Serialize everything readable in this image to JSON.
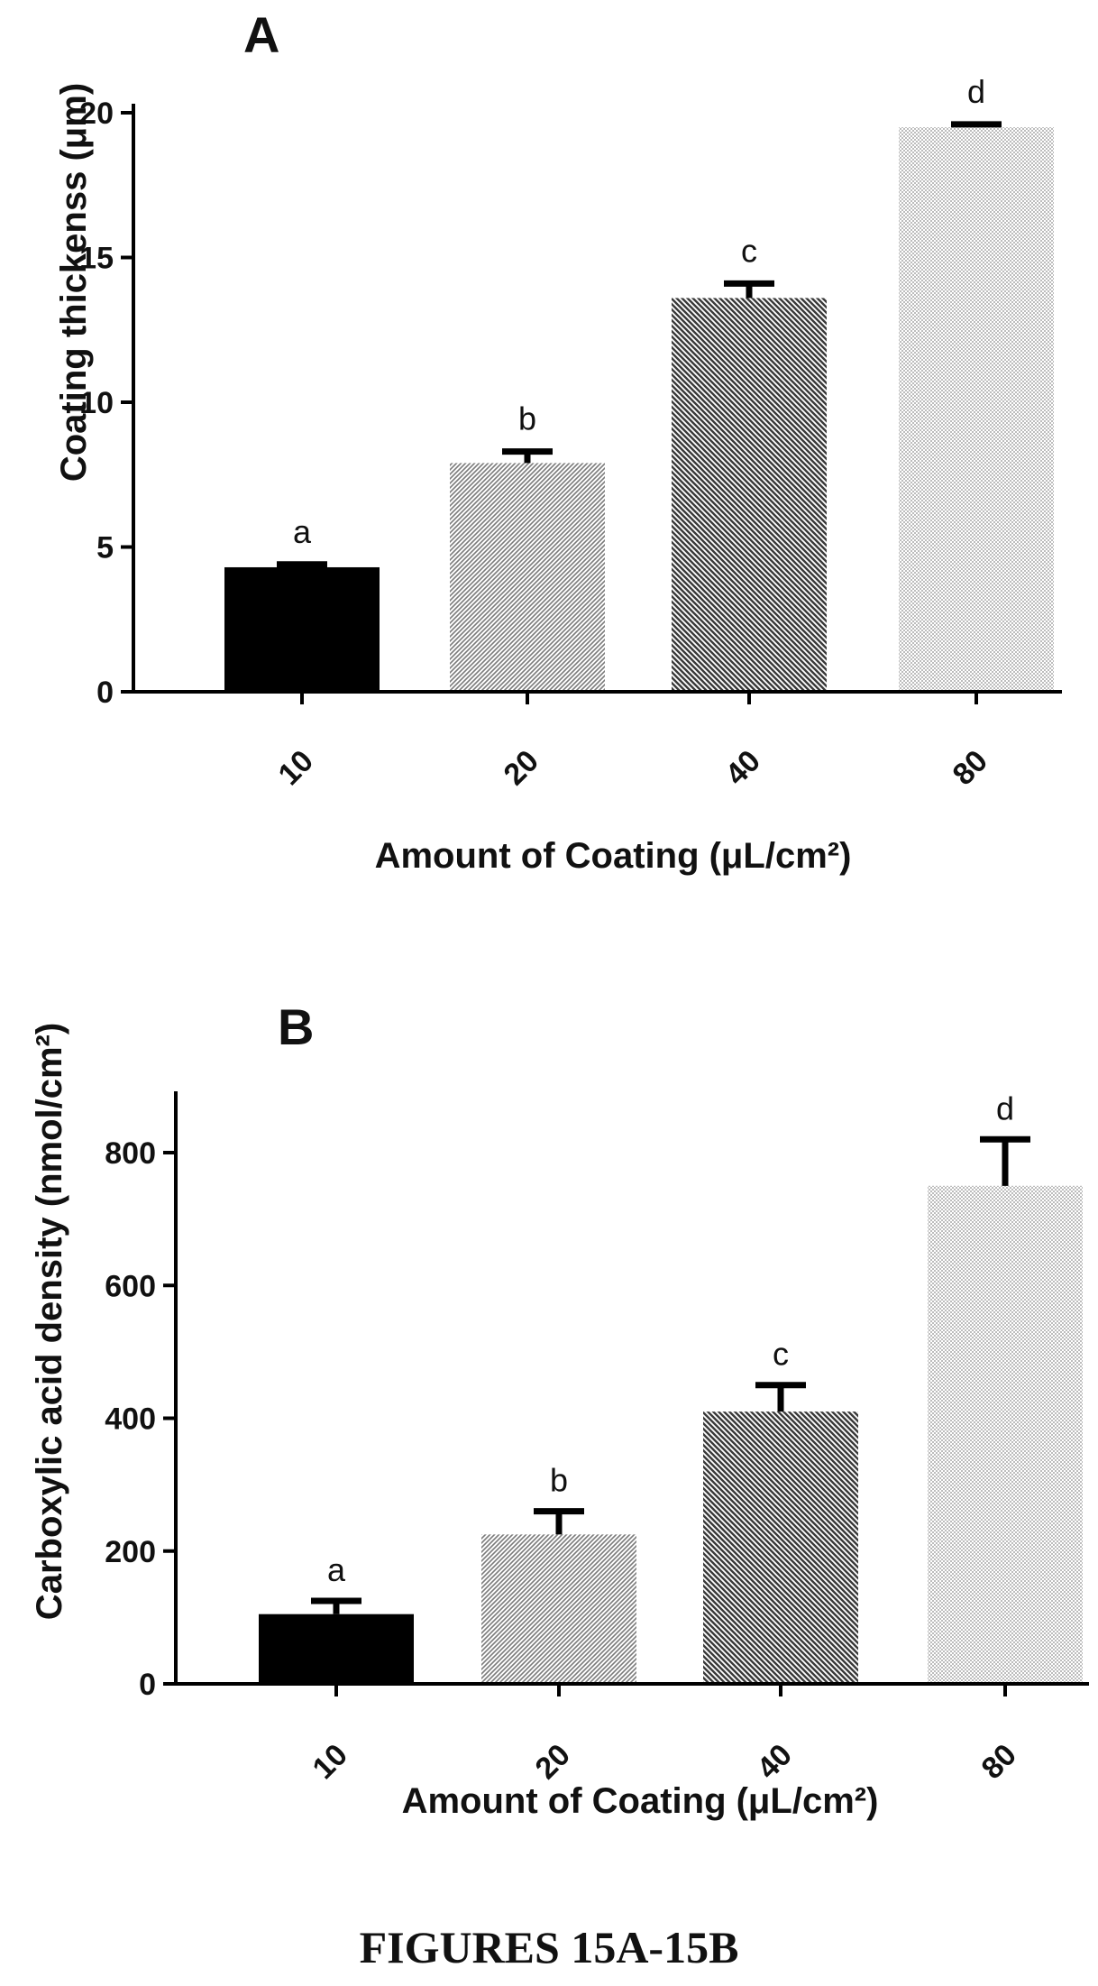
{
  "caption": "FIGURES 15A-15B",
  "chart_data": [
    {
      "panel": "A",
      "type": "bar",
      "categories": [
        "10",
        "20",
        "40",
        "80"
      ],
      "values": [
        4.3,
        7.9,
        13.6,
        19.5
      ],
      "errors": [
        0.1,
        0.4,
        0.5,
        0.1
      ],
      "labels": [
        "a",
        "b",
        "c",
        "d"
      ],
      "xlabel": "Amount of Coating (μL/cm²)",
      "ylabel": "Coating thickenss (μm)",
      "ylim": [
        0,
        22
      ],
      "yticks": [
        "0",
        "5",
        "10",
        "15",
        "20"
      ],
      "fills": [
        "solid-black",
        "dense-hatch",
        "diagonal-hatch",
        "light-dots"
      ],
      "grid": false
    },
    {
      "panel": "B",
      "type": "bar",
      "categories": [
        "10",
        "20",
        "40",
        "80"
      ],
      "values": [
        105,
        225,
        410,
        750
      ],
      "errors": [
        20,
        35,
        40,
        70
      ],
      "labels": [
        "a",
        "b",
        "c",
        "d"
      ],
      "xlabel": "Amount of Coating (μL/cm²)",
      "ylabel": "Carboxylic acid density (nmol/cm²)",
      "ylim": [
        0,
        900
      ],
      "yticks": [
        "0",
        "200",
        "400",
        "600",
        "800"
      ],
      "fills": [
        "solid-black",
        "dense-hatch",
        "diagonal-hatch",
        "light-dots"
      ],
      "grid": false
    }
  ]
}
